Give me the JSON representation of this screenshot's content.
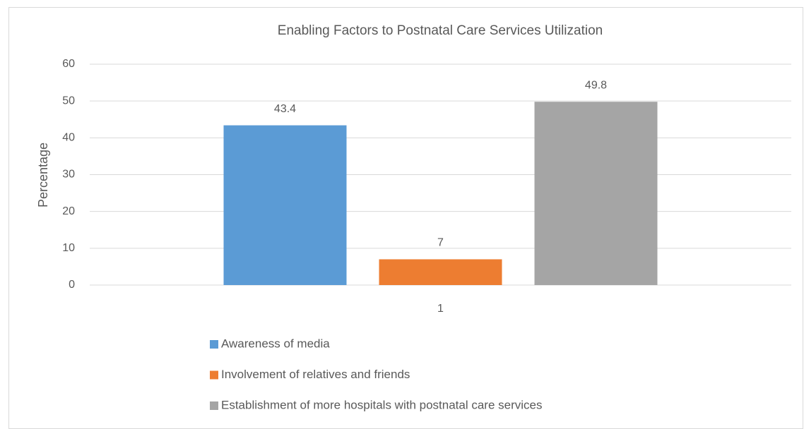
{
  "chart_data": {
    "type": "bar",
    "title": "Enabling Factors to Postnatal Care Services Utilization",
    "y_label": "Percentage",
    "categories": [
      "1"
    ],
    "series": [
      {
        "name": "Awareness of media",
        "color": "#5b9bd5",
        "values": [
          43.4
        ]
      },
      {
        "name": "Involvement of relatives and friends",
        "color": "#ed7d31",
        "values": [
          7
        ]
      },
      {
        "name": "Establishment of more hospitals with postnatal care services",
        "color": "#a5a5a5",
        "values": [
          49.8
        ]
      }
    ],
    "ylim": [
      0,
      60
    ],
    "yticks": [
      0,
      10,
      20,
      30,
      40,
      50,
      60
    ],
    "grid": true,
    "legend": "bottom",
    "data_labels": true
  }
}
